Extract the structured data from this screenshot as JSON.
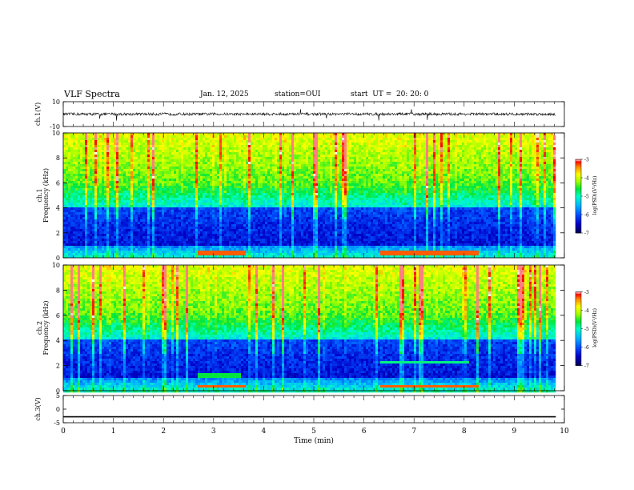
{
  "header": {
    "title": "VLF Spectra",
    "date": "Jan. 12, 2025",
    "station": "station=OUI",
    "start": "start  UT =  20: 20: 0"
  },
  "chart_data": [
    {
      "type": "line",
      "panel": "ch1-waveform",
      "ylabel": "ch.1(V)",
      "ylim": [
        -10,
        10
      ],
      "y_ticks": [
        "10",
        "-10"
      ],
      "x_range_min": [
        0,
        9.83
      ],
      "baseline": 0,
      "note_series": "broadband noise waveform, amplitude about ±1 V with spikes to ±4 V"
    },
    {
      "type": "heatmap",
      "panel": "ch1-spectrogram",
      "ylabel": "ch.1\nFrequency (kHz)",
      "ylabel_line1": "ch.1",
      "ylabel_line2": "Frequency (kHz)",
      "ylim": [
        0,
        10
      ],
      "y_ticks": [
        "0",
        "2",
        "4",
        "6",
        "8",
        "10"
      ],
      "x_range_min": [
        0,
        9.83
      ],
      "colorbar": {
        "label": "log(PSD)(V²/Hz)",
        "range": [
          -7,
          -3
        ],
        "ticks": [
          "-3",
          "-4",
          "-5",
          "-6",
          "-7"
        ],
        "colors": [
          "#000050",
          "#0000ff",
          "#00aaff",
          "#00ffcc",
          "#00ff00",
          "#aaff00",
          "#ffff00",
          "#ff8800",
          "#ff0000",
          "#ffffff"
        ]
      }
    },
    {
      "type": "heatmap",
      "panel": "ch2-spectrogram",
      "ylabel_line1": "ch.2",
      "ylabel_line2": "Frequency (kHz)",
      "ylim": [
        0,
        10
      ],
      "y_ticks": [
        "0",
        "2",
        "4",
        "6",
        "8",
        "10"
      ],
      "x_range_min": [
        0,
        9.83
      ],
      "colorbar": {
        "label": "log(PSD)(V²/Hz)",
        "range": [
          -7,
          -3
        ],
        "ticks": [
          "-3",
          "-4",
          "-5",
          "-6",
          "-7"
        ]
      }
    },
    {
      "type": "line",
      "panel": "ch3-waveform",
      "ylabel": "ch.3(V)",
      "ylim": [
        -5,
        5
      ],
      "y_ticks": [
        "5",
        "0",
        "-5"
      ],
      "x_range_min": [
        0,
        9.83
      ],
      "constant_value": -2.8
    }
  ],
  "xaxis": {
    "label": "Time (min)",
    "ticks": [
      "0",
      "1",
      "2",
      "3",
      "4",
      "5",
      "6",
      "7",
      "8",
      "9",
      "10"
    ],
    "range": [
      0,
      10
    ]
  }
}
